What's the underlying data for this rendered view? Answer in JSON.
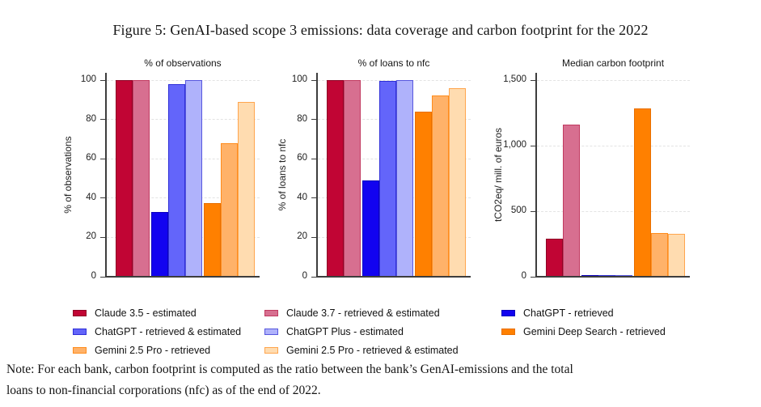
{
  "figure_title": "Figure 5: GenAI-based scope 3 emissions: data coverage and carbon footprint for the 2022",
  "note": {
    "line1": "Note: For each bank, carbon footprint is computed as the ratio between the bank’s GenAI-emissions and the total",
    "line2": "loans to non-financial corporations (nfc) as of the end of 2022."
  },
  "series": [
    {
      "name": "Claude 3.5 - estimated",
      "fill": "#C10534",
      "border": "#8E0426"
    },
    {
      "name": "Claude 3.7 - retrieved & estimated",
      "fill": "#D76F90",
      "border": "#C13A60"
    },
    {
      "name": "ChatGPT - retrieved",
      "fill": "#1203F0",
      "border": "#0B00BE"
    },
    {
      "name": "ChatGPT - retrieved & estimated",
      "fill": "#6365FA",
      "border": "#2F2FD8"
    },
    {
      "name": "ChatGPT Plus - estimated",
      "fill": "#AFB2FB",
      "border": "#5757DE"
    },
    {
      "name": "Gemini Deep Search - retrieved",
      "fill": "#FF8000",
      "border": "#E86F00"
    },
    {
      "name": "Gemini 2.5 Pro - retrieved",
      "fill": "#FFB269",
      "border": "#FF8C1C"
    },
    {
      "name": "Gemini 2.5 Pro - retrieved & estimated",
      "fill": "#FFDCB0",
      "border": "#FFA54D"
    }
  ],
  "chart_data": [
    {
      "type": "bar",
      "title": "% of observations",
      "xlabel": "",
      "ylabel": "% of observations",
      "ylim": [
        0,
        100
      ],
      "yticks": [
        0,
        20,
        40,
        60,
        80,
        100
      ],
      "ytick_labels": [
        "0",
        "20",
        "40",
        "60",
        "80",
        "100"
      ],
      "grid": true,
      "categories": [
        "Claude 3.5 - estimated",
        "Claude 3.7 - retrieved & estimated",
        "ChatGPT - retrieved",
        "ChatGPT - retrieved & estimated",
        "ChatGPT Plus - estimated",
        "Gemini Deep Search - retrieved",
        "Gemini 2.5 Pro - retrieved",
        "Gemini 2.5 Pro - retrieved & estimated"
      ],
      "values": [
        100,
        100,
        33,
        98,
        100,
        37.5,
        68,
        89
      ]
    },
    {
      "type": "bar",
      "title": "% of loans to nfc",
      "xlabel": "",
      "ylabel": "% of loans to nfc",
      "ylim": [
        0,
        100
      ],
      "yticks": [
        0,
        20,
        40,
        60,
        80,
        100
      ],
      "ytick_labels": [
        "0",
        "20",
        "40",
        "60",
        "80",
        "100"
      ],
      "grid": true,
      "categories": [
        "Claude 3.5 - estimated",
        "Claude 3.7 - retrieved & estimated",
        "ChatGPT - retrieved",
        "ChatGPT - retrieved & estimated",
        "ChatGPT Plus - estimated",
        "Gemini Deep Search - retrieved",
        "Gemini 2.5 Pro - retrieved",
        "Gemini 2.5 Pro - retrieved & estimated"
      ],
      "values": [
        100,
        100,
        49,
        99.5,
        100,
        84,
        92,
        96
      ]
    },
    {
      "type": "bar",
      "title": "Median carbon footprint",
      "xlabel": "",
      "ylabel": "tCO2eq/ mill. of euros",
      "ylim": [
        0,
        1500
      ],
      "yticks": [
        0,
        500,
        1000,
        1500
      ],
      "ytick_labels": [
        "0",
        "500",
        "1,000",
        "1,500"
      ],
      "grid": true,
      "categories": [
        "Claude 3.5 - estimated",
        "Claude 3.7 - retrieved & estimated",
        "ChatGPT - retrieved",
        "ChatGPT - retrieved & estimated",
        "ChatGPT Plus - estimated",
        "Gemini Deep Search - retrieved",
        "Gemini 2.5 Pro - retrieved",
        "Gemini 2.5 Pro - retrieved & estimated"
      ],
      "values": [
        290,
        1160,
        4,
        12,
        4,
        1285,
        335,
        330
      ]
    }
  ],
  "legend": {
    "position": "bottom",
    "columns": [
      [
        0,
        3,
        6
      ],
      [
        1,
        4,
        7
      ],
      [
        2,
        5
      ]
    ]
  }
}
